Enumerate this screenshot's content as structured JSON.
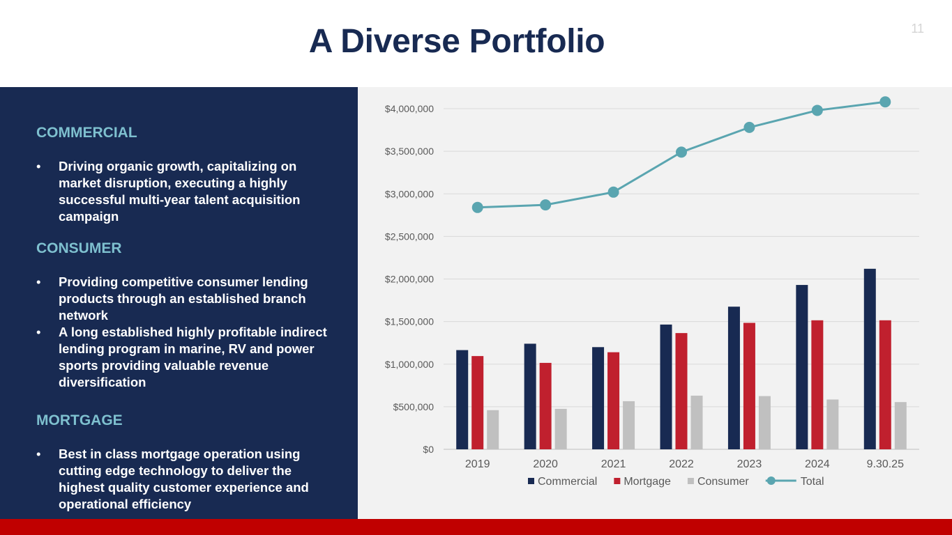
{
  "slide": {
    "title": "A Diverse Portfolio",
    "page_number": "11"
  },
  "sections": {
    "commercial": {
      "heading": "COMMERCIAL",
      "bullets": [
        "Driving organic growth, capitalizing on market disruption, executing a highly successful multi-year talent acquisition campaign"
      ]
    },
    "consumer": {
      "heading": "CONSUMER",
      "bullets": [
        "Providing competitive consumer lending products through an established branch network",
        "A long established highly profitable indirect lending program in marine, RV and power sports providing valuable revenue diversification"
      ]
    },
    "mortgage": {
      "heading": "MORTGAGE",
      "bullets": [
        "Best in class mortgage operation using cutting edge technology to deliver the highest quality customer experience and operational efficiency"
      ]
    }
  },
  "colors": {
    "navy": "#182a52",
    "teal_heading": "#7ec0cf",
    "commercial": "#182a52",
    "mortgage": "#c0202e",
    "consumer": "#c0c0c0",
    "total": "#5aa5b0",
    "footer_red": "#c00000"
  },
  "chart_data": {
    "type": "bar+line",
    "title": "",
    "xlabel": "",
    "ylabel": "",
    "categories": [
      "2019",
      "2020",
      "2021",
      "2022",
      "2023",
      "2024",
      "9.30.25"
    ],
    "ylim": [
      0,
      4000000
    ],
    "yticks": [
      0,
      500000,
      1000000,
      1500000,
      2000000,
      2500000,
      3000000,
      3500000,
      4000000
    ],
    "ytick_labels": [
      "$0",
      "$500,000",
      "$1,000,000",
      "$1,500,000",
      "$2,000,000",
      "$2,500,000",
      "$3,000,000",
      "$3,500,000",
      "$4,000,000"
    ],
    "grid": true,
    "legend_position": "bottom",
    "series": [
      {
        "name": "Commercial",
        "kind": "bar",
        "color": "#182a52",
        "values": [
          1165000,
          1240000,
          1200000,
          1465000,
          1675000,
          1930000,
          2120000
        ]
      },
      {
        "name": "Mortgage",
        "kind": "bar",
        "color": "#c0202e",
        "values": [
          1095000,
          1015000,
          1140000,
          1365000,
          1485000,
          1515000,
          1515000
        ]
      },
      {
        "name": "Consumer",
        "kind": "bar",
        "color": "#c0c0c0",
        "values": [
          460000,
          475000,
          565000,
          630000,
          625000,
          585000,
          555000
        ]
      },
      {
        "name": "Total",
        "kind": "line",
        "color": "#5aa5b0",
        "values": [
          2840000,
          2870000,
          3020000,
          3490000,
          3780000,
          3980000,
          4080000
        ]
      }
    ]
  }
}
